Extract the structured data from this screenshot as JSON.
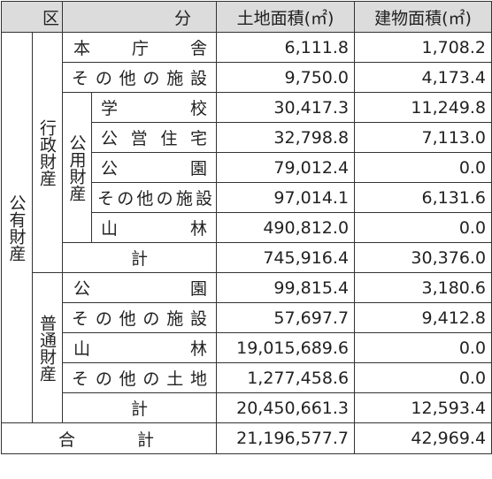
{
  "header": {
    "col_ku": "区",
    "col_bun": "分",
    "col_land": "土地面積(㎡)",
    "col_building": "建物面積(㎡)"
  },
  "groups": {
    "public_property": "公有財産",
    "administrative": "行政財産",
    "public_use": "公用財産",
    "ordinary": "普通財産"
  },
  "rows": {
    "honchosha": {
      "label": "本庁舎",
      "land": "6,111.8",
      "building": "1,708.2"
    },
    "admin_other": {
      "label": "その他の施設",
      "land": "9,750.0",
      "building": "4,173.4"
    },
    "school": {
      "label": "学校",
      "land": "30,417.3",
      "building": "11,249.8"
    },
    "housing": {
      "label": "公営住宅",
      "land": "32,798.8",
      "building": "7,113.0"
    },
    "park": {
      "label": "公園",
      "land": "79,012.4",
      "building": "0.0"
    },
    "public_other": {
      "label": "その他の施設",
      "land": "97,014.1",
      "building": "6,131.6"
    },
    "forest": {
      "label": "山林",
      "land": "490,812.0",
      "building": "0.0"
    },
    "admin_total": {
      "label": "計",
      "land": "745,916.4",
      "building": "30,376.0"
    },
    "ord_park": {
      "label": "公園",
      "land": "99,815.4",
      "building": "3,180.6"
    },
    "ord_other_facility": {
      "label": "その他の施設",
      "land": "57,697.7",
      "building": "9,412.8"
    },
    "ord_forest": {
      "label": "山林",
      "land": "19,015,689.6",
      "building": "0.0"
    },
    "ord_other_land": {
      "label": "その他の土地",
      "land": "1,277,458.6",
      "building": "0.0"
    },
    "ord_total": {
      "label": "計",
      "land": "20,450,661.3",
      "building": "12,593.4"
    },
    "grand_total": {
      "label": "合計",
      "land": "21,196,577.7",
      "building": "42,969.4"
    }
  }
}
